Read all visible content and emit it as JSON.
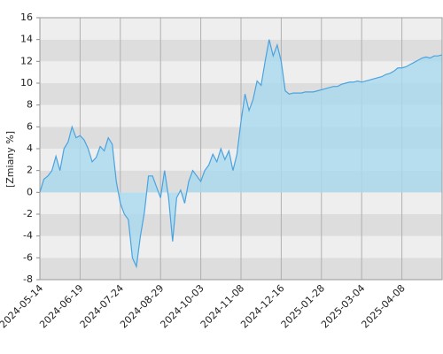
{
  "chart_data": {
    "type": "area",
    "y_label": "[Zmiany %]",
    "categories": [
      "2024-05-14",
      null,
      null,
      null,
      null,
      null,
      null,
      null,
      null,
      null,
      "2024-06-19",
      null,
      null,
      null,
      null,
      null,
      null,
      null,
      null,
      null,
      "2024-07-24",
      null,
      null,
      null,
      null,
      null,
      null,
      null,
      null,
      null,
      "2024-08-29",
      null,
      null,
      null,
      null,
      null,
      null,
      null,
      null,
      null,
      "2024-10-03",
      null,
      null,
      null,
      null,
      null,
      null,
      null,
      null,
      null,
      "2024-11-08",
      null,
      null,
      null,
      null,
      null,
      null,
      null,
      null,
      null,
      "2024-12-16",
      null,
      null,
      null,
      null,
      null,
      null,
      null,
      null,
      null,
      "2025-01-28",
      null,
      null,
      null,
      null,
      null,
      null,
      null,
      null,
      null,
      "2025-03-04",
      null,
      null,
      null,
      null,
      null,
      null,
      null,
      null,
      null,
      "2025-04-08",
      null,
      null,
      null,
      null,
      null,
      null,
      null,
      null,
      null,
      null
    ],
    "values": [
      0,
      1.2,
      1.5,
      2,
      3.3,
      2,
      4,
      4.6,
      6,
      5,
      5.2,
      4.8,
      4,
      2.8,
      3.2,
      4.2,
      3.8,
      5,
      4.4,
      1,
      -1,
      -2,
      -2.5,
      -6,
      -6.8,
      -4,
      -1.8,
      1.5,
      1.5,
      0.5,
      -0.5,
      2,
      -0.5,
      -4.5,
      -0.5,
      0.2,
      -1,
      1,
      2,
      1.5,
      1,
      2,
      2.5,
      3.5,
      2.8,
      4,
      3,
      3.8,
      2,
      3.5,
      6.5,
      9,
      7.5,
      8.5,
      10.2,
      9.8,
      12,
      14,
      12.5,
      13.5,
      12,
      9.3,
      9,
      9.1,
      9.1,
      9.1,
      9.2,
      9.2,
      9.2,
      9.3,
      9.4,
      9.5,
      9.6,
      9.7,
      9.7,
      9.9,
      10,
      10.1,
      10.1,
      10.2,
      10.1,
      10.2,
      10.3,
      10.4,
      10.5,
      10.6,
      10.8,
      10.9,
      11.1,
      11.4,
      11.4,
      11.5,
      11.7,
      11.9,
      12.1,
      12.3,
      12.4,
      12.3,
      12.5,
      12.5,
      12.6
    ],
    "color": "#4aa3df",
    "fill": "#a9d9ef",
    "ylim": [
      -8,
      16
    ],
    "yticks": [
      -8,
      -6,
      -4,
      -2,
      0,
      2,
      4,
      6,
      8,
      10,
      12,
      14,
      16
    ],
    "grid": true,
    "bands": [
      "#eeeeee",
      "#dddddd"
    ]
  }
}
